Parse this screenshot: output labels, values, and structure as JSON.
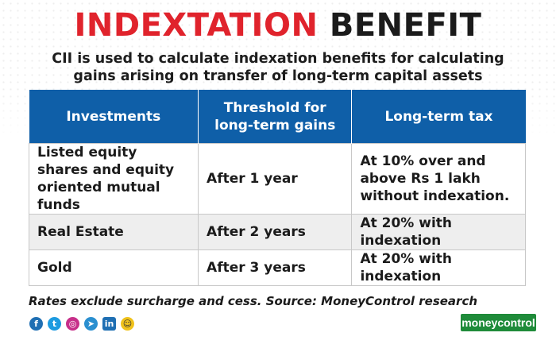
{
  "header": {
    "title_part1": "INDEXTATION",
    "title_part2": "BENEFIT",
    "subtitle_line1": "CII is used to calculate indexation benefits for calculating",
    "subtitle_line2": "gains arising on transfer of long-term capital assets"
  },
  "table": {
    "headers": [
      "Investments",
      "Threshold for long-term gains",
      "Long-term tax"
    ],
    "rows": [
      [
        "Listed equity shares and equity oriented mutual funds",
        "After 1 year",
        "At 10% over and above Rs 1 lakh without indexation."
      ],
      [
        "Real Estate",
        "After 2 years",
        "At 20% with indexation"
      ],
      [
        "Gold",
        "After 3 years",
        "At 20% with indexation"
      ]
    ]
  },
  "footer": {
    "note": "Rates exclude surcharge and cess. Source: MoneyControl research",
    "brand": "moneycontrol",
    "social_icons": [
      "facebook-icon",
      "twitter-icon",
      "instagram-icon",
      "telegram-icon",
      "linkedin-icon",
      "snapchat-icon"
    ],
    "social_glyphs": [
      "f",
      "t",
      "◎",
      "➤",
      "in",
      "☺"
    ]
  },
  "colors": {
    "title_red": "#e0232c",
    "header_blue": "#0f5fa8",
    "brand_green": "#1f8b3a"
  }
}
